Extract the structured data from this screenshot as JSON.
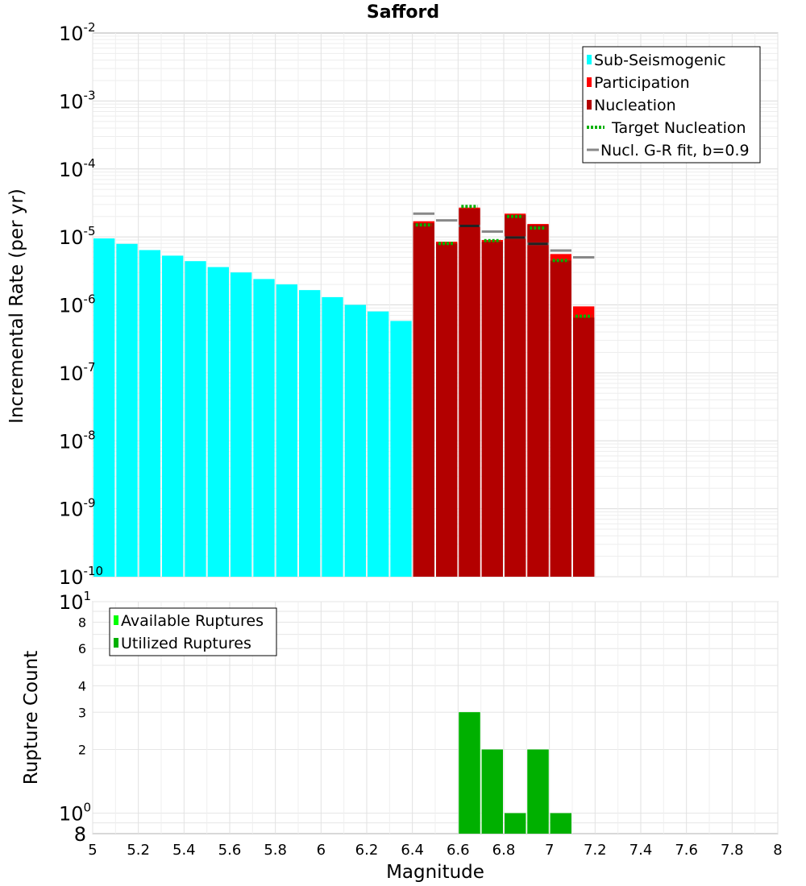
{
  "chart_data": [
    {
      "type": "bar",
      "title": "Safford",
      "xlabel": "",
      "ylabel": "Incremental Rate (per yr)",
      "xlim": [
        5,
        8
      ],
      "ylim": [
        1e-10,
        0.01
      ],
      "yscale": "log",
      "bin_width": 0.1,
      "grid": true,
      "legend_position": "top-right",
      "y_ticks": [
        {
          "base": "10",
          "exp": "-2"
        },
        {
          "base": "10",
          "exp": "-3"
        },
        {
          "base": "10",
          "exp": "-4"
        },
        {
          "base": "10",
          "exp": "-5"
        },
        {
          "base": "10",
          "exp": "-6"
        },
        {
          "base": "10",
          "exp": "-7"
        },
        {
          "base": "10",
          "exp": "-8"
        },
        {
          "base": "10",
          "exp": "-9"
        },
        {
          "base": "10",
          "exp": "-10"
        }
      ],
      "legend": [
        {
          "label": "Sub-Seismogenic",
          "kind": "bar",
          "color": "#00ffff"
        },
        {
          "label": "Participation",
          "kind": "bar",
          "color": "#ff0000"
        },
        {
          "label": "Nucleation",
          "kind": "bar",
          "color": "#b30000"
        },
        {
          "label": "Target Nucleation",
          "kind": "dotted",
          "color": "#00b000"
        },
        {
          "label": "Nucl. G-R fit, b=0.9",
          "kind": "line",
          "color": "#888888"
        }
      ],
      "series": [
        {
          "name": "Sub-Seismogenic",
          "color": "#00ffff",
          "x": [
            5.05,
            5.15,
            5.25,
            5.35,
            5.45,
            5.55,
            5.65,
            5.75,
            5.85,
            5.95,
            6.05,
            6.15,
            6.25,
            6.35
          ],
          "values": [
            9.5e-06,
            7.9e-06,
            6.4e-06,
            5.3e-06,
            4.4e-06,
            3.6e-06,
            3e-06,
            2.4e-06,
            2e-06,
            1.65e-06,
            1.3e-06,
            1e-06,
            8e-07,
            5.8e-07
          ]
        },
        {
          "name": "Participation",
          "color": "#ff0000",
          "x": [
            6.45,
            6.55,
            6.65,
            6.75,
            6.85,
            6.95,
            7.05,
            7.15
          ],
          "values": [
            1.7e-05,
            8.5e-06,
            2.7e-05,
            9e-06,
            2.2e-05,
            1.55e-05,
            5.6e-06,
            9.5e-07
          ]
        },
        {
          "name": "Nucleation",
          "color": "#b30000",
          "x": [
            6.45,
            6.55,
            6.65,
            6.75,
            6.85,
            6.95,
            7.05,
            7.15
          ],
          "values": [
            1.6e-05,
            8e-06,
            2.6e-05,
            8.5e-06,
            2.1e-05,
            1.5e-05,
            4.5e-06,
            6.5e-07
          ]
        },
        {
          "name": "Target Nucleation",
          "color": "#00b000",
          "x": [
            6.45,
            6.55,
            6.65,
            6.75,
            6.85,
            6.95,
            7.05,
            7.15
          ],
          "values": [
            1.5e-05,
            8e-06,
            2.8e-05,
            8.8e-06,
            2e-05,
            1.35e-05,
            4.5e-06,
            6.8e-07
          ]
        },
        {
          "name": "Nucl. G-R fit, b=0.9",
          "color": "#888888",
          "x": [
            6.45,
            6.55,
            6.65,
            6.75,
            6.85,
            6.95,
            7.05,
            7.15
          ],
          "values": [
            2.2e-05,
            1.75e-05,
            1.45e-05,
            1.2e-05,
            9.8e-06,
            7.9e-06,
            6.3e-06,
            5e-06
          ]
        }
      ],
      "markers": {
        "color": "#222222",
        "x": [
          6.65,
          6.85,
          6.95
        ],
        "values": [
          1.45e-05,
          9.8e-06,
          7.9e-06
        ]
      }
    },
    {
      "type": "bar",
      "title": "",
      "xlabel": "Magnitude",
      "ylabel": "Rupture Count",
      "xlim": [
        5,
        8
      ],
      "ylim": [
        0.8,
        10
      ],
      "yscale": "log",
      "bin_width": 0.1,
      "grid": true,
      "legend_position": "top-left",
      "x_ticks": [
        "5",
        "5.2",
        "5.4",
        "5.6",
        "5.8",
        "6",
        "6.2",
        "6.4",
        "6.6",
        "6.8",
        "7",
        "7.2",
        "7.4",
        "7.6",
        "7.8",
        "8"
      ],
      "y_ticks_power": [
        {
          "value": 10,
          "base": "10",
          "exp": "1"
        },
        {
          "value": 1,
          "base": "10",
          "exp": "0"
        }
      ],
      "y_ticks_minor": [
        {
          "value": 8,
          "label": "8"
        },
        {
          "value": 6,
          "label": "6"
        },
        {
          "value": 4,
          "label": "4"
        },
        {
          "value": 3,
          "label": "3"
        },
        {
          "value": 2,
          "label": "2"
        }
      ],
      "y_bottom_label": "8",
      "legend": [
        {
          "label": "Available Ruptures",
          "kind": "bar",
          "color": "#00ff00"
        },
        {
          "label": "Utilized Ruptures",
          "kind": "bar",
          "color": "#00b000"
        }
      ],
      "series": [
        {
          "name": "Available Ruptures",
          "color": "#00ff00",
          "x": [
            6.65,
            6.75,
            6.85,
            6.95,
            7.05
          ],
          "values": [
            3,
            2,
            1,
            2,
            1
          ]
        },
        {
          "name": "Utilized Ruptures",
          "color": "#00b000",
          "x": [
            6.65,
            6.75,
            6.85,
            6.95,
            7.05
          ],
          "values": [
            3,
            2,
            1,
            2,
            1
          ]
        }
      ]
    }
  ]
}
